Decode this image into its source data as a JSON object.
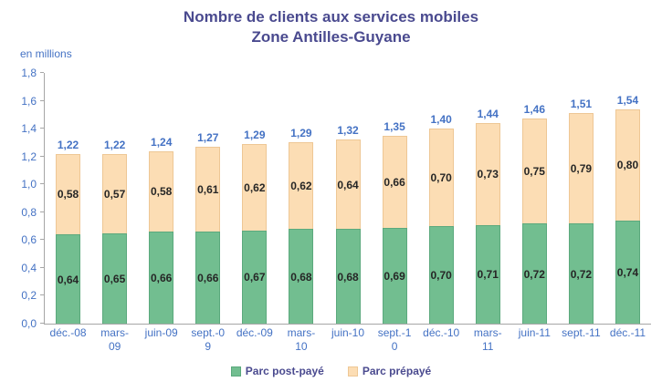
{
  "chart_data": {
    "type": "bar",
    "stacked": true,
    "title_line1": "Nombre de clients aux services mobiles",
    "title_line2": "Zone Antilles-Guyane",
    "unit_label": "en millions",
    "categories": [
      "déc.-08",
      "mars-09",
      "juin-09",
      "sept.-09",
      "déc.-09",
      "mars-10",
      "juin-10",
      "sept.-10",
      "déc.-10",
      "mars-11",
      "juin-11",
      "sept.-11",
      "déc.-11"
    ],
    "ylim": [
      0,
      1.8
    ],
    "yticks": [
      "0,0",
      "0,2",
      "0,4",
      "0,6",
      "0,8",
      "1,0",
      "1,2",
      "1,4",
      "1,6",
      "1,8"
    ],
    "grid": false,
    "legend_position": "bottom",
    "series": [
      {
        "name": "Parc post-payé",
        "color": "#72BE90",
        "border_color": "#5BA97D",
        "values": [
          0.64,
          0.65,
          0.66,
          0.66,
          0.67,
          0.68,
          0.68,
          0.69,
          0.7,
          0.71,
          0.72,
          0.72,
          0.74
        ],
        "labels": [
          "0,64",
          "0,65",
          "0,66",
          "0,66",
          "0,67",
          "0,68",
          "0,68",
          "0,69",
          "0,70",
          "0,71",
          "0,72",
          "0,72",
          "0,74"
        ]
      },
      {
        "name": "Parc prépayé",
        "color": "#FCDDB4",
        "border_color": "#EEC795",
        "values": [
          0.58,
          0.57,
          0.58,
          0.61,
          0.62,
          0.62,
          0.64,
          0.66,
          0.7,
          0.73,
          0.75,
          0.79,
          0.8
        ],
        "labels": [
          "0,58",
          "0,57",
          "0,58",
          "0,61",
          "0,62",
          "0,62",
          "0,64",
          "0,66",
          "0,70",
          "0,73",
          "0,75",
          "0,79",
          "0,80"
        ]
      }
    ],
    "totals": [
      "1,22",
      "1,22",
      "1,24",
      "1,27",
      "1,29",
      "1,29",
      "1,32",
      "1,35",
      "1,40",
      "1,44",
      "1,46",
      "1,51",
      "1,54"
    ],
    "colors": {
      "title": "#4A4A8F",
      "totals": "#4472C4",
      "axis_labels": "#4472C4",
      "segment_labels": "#262626",
      "axis_line": "#A6A6A6",
      "legend_text": "#4A4A8F"
    }
  }
}
